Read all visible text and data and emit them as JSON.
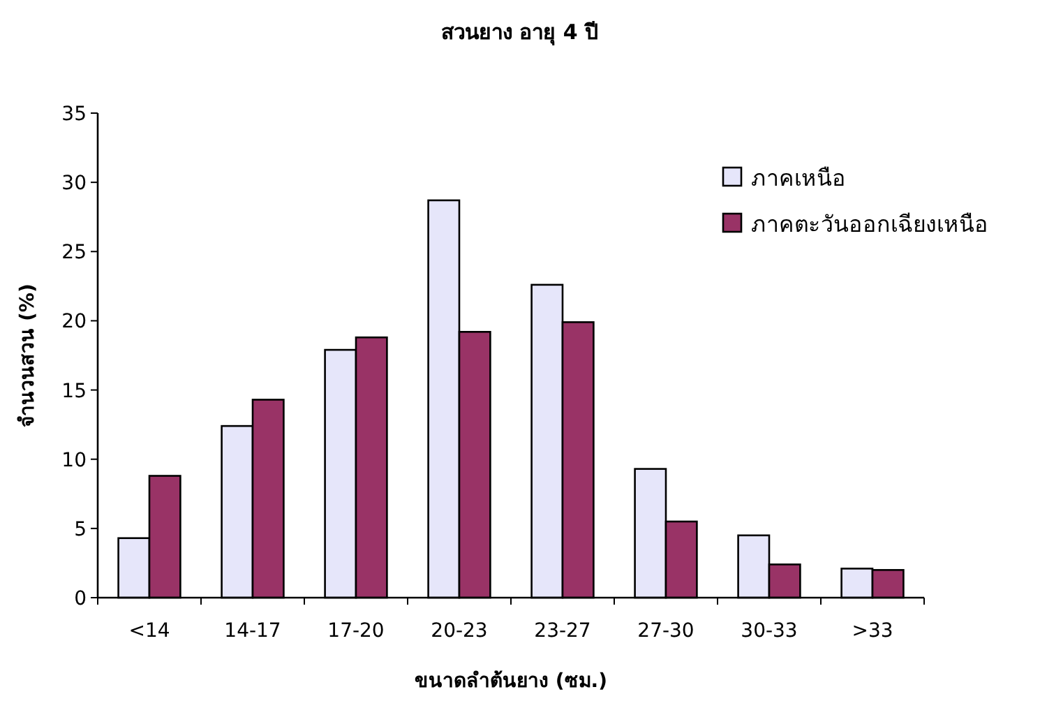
{
  "chart_data": {
    "type": "bar",
    "title": "สวนยาง อายุ 4 ปี",
    "xlabel": "ขนาดลำต้นยาง (ซม.)",
    "ylabel": "จำนวนสวน (%)",
    "categories": [
      "<14",
      "14-17",
      "17-20",
      "20-23",
      "23-27",
      "27-30",
      "30-33",
      ">33"
    ],
    "series": [
      {
        "name": "ภาคเหนือ",
        "color": "#e6e6fa",
        "values": [
          4.3,
          12.4,
          17.9,
          28.7,
          22.6,
          9.3,
          4.5,
          2.1
        ]
      },
      {
        "name": "ภาคตะวันออกเฉียงเหนือ",
        "color": "#993366",
        "values": [
          8.8,
          14.3,
          18.8,
          19.2,
          19.9,
          5.5,
          2.4,
          2.0
        ]
      }
    ],
    "ylim": [
      0,
      35
    ],
    "yticks": [
      0,
      5,
      10,
      15,
      20,
      25,
      30,
      35
    ],
    "legend": "top right",
    "grid": false
  }
}
